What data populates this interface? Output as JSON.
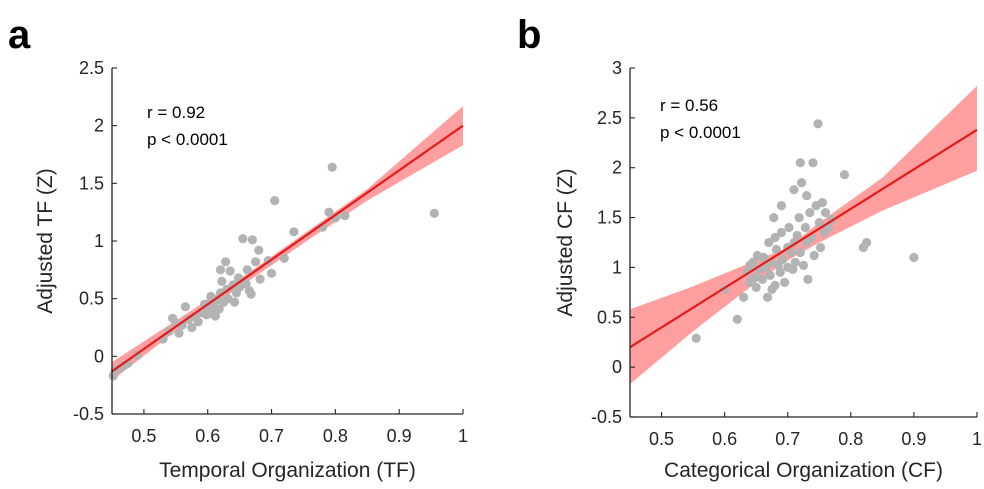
{
  "chart_data": [
    {
      "type": "scatter",
      "panel_label": "a",
      "xlabel": "Temporal Organization (TF)",
      "ylabel": "Adjusted TF (Z)",
      "xlim": [
        0.45,
        1
      ],
      "ylim": [
        -0.5,
        2.5
      ],
      "x_ticks": [
        0.5,
        0.6,
        0.7,
        0.8,
        0.9,
        1
      ],
      "x_tick_labels": [
        "0.5",
        "0.6",
        "0.7",
        "0.8",
        "0.9",
        "1"
      ],
      "y_ticks": [
        -0.5,
        0,
        0.5,
        1,
        1.5,
        2,
        2.5
      ],
      "y_tick_labels": [
        "-0.5",
        "0",
        "0.5",
        "1",
        "1.5",
        "2",
        "2.5"
      ],
      "grid": false,
      "annotations": [
        "r = 0.92",
        "p < 0.0001"
      ],
      "fit_line": {
        "x": [
          0.45,
          1.0
        ],
        "y": [
          -0.13,
          2.0
        ]
      },
      "ci_band": {
        "x": [
          0.45,
          0.55,
          0.65,
          0.75,
          0.85,
          1.0
        ],
        "lower": [
          -0.21,
          0.22,
          0.6,
          0.98,
          1.35,
          1.83
        ],
        "upper": [
          -0.05,
          0.31,
          0.67,
          1.06,
          1.45,
          2.17
        ]
      },
      "points": [
        [
          0.452,
          -0.17
        ],
        [
          0.455,
          -0.12
        ],
        [
          0.462,
          -0.1
        ],
        [
          0.468,
          -0.08
        ],
        [
          0.475,
          -0.06
        ],
        [
          0.49,
          0.01
        ],
        [
          0.53,
          0.15
        ],
        [
          0.54,
          0.22
        ],
        [
          0.545,
          0.33
        ],
        [
          0.55,
          0.29
        ],
        [
          0.555,
          0.2
        ],
        [
          0.56,
          0.27
        ],
        [
          0.565,
          0.43
        ],
        [
          0.57,
          0.32
        ],
        [
          0.575,
          0.25
        ],
        [
          0.58,
          0.34
        ],
        [
          0.585,
          0.3
        ],
        [
          0.59,
          0.38
        ],
        [
          0.595,
          0.45
        ],
        [
          0.598,
          0.36
        ],
        [
          0.6,
          0.4
        ],
        [
          0.602,
          0.46
        ],
        [
          0.605,
          0.52
        ],
        [
          0.608,
          0.37
        ],
        [
          0.61,
          0.43
        ],
        [
          0.612,
          0.35
        ],
        [
          0.615,
          0.49
        ],
        [
          0.618,
          0.41
        ],
        [
          0.62,
          0.55
        ],
        [
          0.62,
          0.75
        ],
        [
          0.622,
          0.65
        ],
        [
          0.625,
          0.47
        ],
        [
          0.628,
          0.82
        ],
        [
          0.63,
          0.58
        ],
        [
          0.632,
          0.5
        ],
        [
          0.635,
          0.74
        ],
        [
          0.64,
          0.62
        ],
        [
          0.642,
          0.47
        ],
        [
          0.645,
          0.55
        ],
        [
          0.648,
          0.68
        ],
        [
          0.65,
          0.6
        ],
        [
          0.655,
          1.02
        ],
        [
          0.66,
          0.63
        ],
        [
          0.662,
          0.75
        ],
        [
          0.665,
          0.57
        ],
        [
          0.668,
          0.54
        ],
        [
          0.67,
          1.01
        ],
        [
          0.675,
          0.82
        ],
        [
          0.68,
          0.92
        ],
        [
          0.682,
          0.67
        ],
        [
          0.695,
          0.83
        ],
        [
          0.7,
          0.72
        ],
        [
          0.705,
          1.35
        ],
        [
          0.72,
          0.85
        ],
        [
          0.735,
          1.08
        ],
        [
          0.78,
          1.12
        ],
        [
          0.79,
          1.25
        ],
        [
          0.795,
          1.64
        ],
        [
          0.8,
          1.2
        ],
        [
          0.815,
          1.22
        ],
        [
          0.955,
          1.24
        ]
      ]
    },
    {
      "type": "scatter",
      "panel_label": "b",
      "xlabel": "Categorical Organization (CF)",
      "ylabel": "Adjusted CF (Z)",
      "xlim": [
        0.45,
        1
      ],
      "ylim": [
        -0.5,
        3
      ],
      "x_ticks": [
        0.5,
        0.6,
        0.7,
        0.8,
        0.9,
        1
      ],
      "x_tick_labels": [
        "0.5",
        "0.6",
        "0.7",
        "0.8",
        "0.9",
        "1"
      ],
      "y_ticks": [
        -0.5,
        0,
        0.5,
        1,
        1.5,
        2,
        2.5,
        3
      ],
      "y_tick_labels": [
        "-0.5",
        "0",
        "0.5",
        "1",
        "1.5",
        "2",
        "2.5",
        "3"
      ],
      "grid": false,
      "annotations": [
        "r = 0.56",
        "p < 0.0001"
      ],
      "fit_line": {
        "x": [
          0.45,
          1.0
        ],
        "y": [
          0.2,
          2.38
        ]
      },
      "ci_band": {
        "x": [
          0.45,
          0.55,
          0.65,
          0.7,
          0.75,
          0.85,
          1.0
        ],
        "lower": [
          -0.17,
          0.36,
          0.85,
          1.07,
          1.25,
          1.57,
          1.97
        ],
        "upper": [
          0.58,
          0.81,
          1.07,
          1.2,
          1.45,
          1.9,
          2.82
        ]
      },
      "points": [
        [
          0.555,
          0.29
        ],
        [
          0.6,
          0.78
        ],
        [
          0.62,
          0.48
        ],
        [
          0.63,
          0.7
        ],
        [
          0.635,
          0.95
        ],
        [
          0.64,
          1.02
        ],
        [
          0.64,
          0.85
        ],
        [
          0.645,
          1.05
        ],
        [
          0.648,
          0.9
        ],
        [
          0.65,
          0.8
        ],
        [
          0.652,
          1.12
        ],
        [
          0.655,
          0.98
        ],
        [
          0.66,
          0.88
        ],
        [
          0.662,
          1.1
        ],
        [
          0.665,
          1.0
        ],
        [
          0.668,
          0.7
        ],
        [
          0.67,
          1.25
        ],
        [
          0.672,
          0.92
        ],
        [
          0.675,
          0.78
        ],
        [
          0.675,
          1.05
        ],
        [
          0.678,
          1.5
        ],
        [
          0.68,
          1.3
        ],
        [
          0.68,
          0.82
        ],
        [
          0.682,
          1.18
        ],
        [
          0.685,
          1.02
        ],
        [
          0.688,
          0.95
        ],
        [
          0.69,
          1.35
        ],
        [
          0.69,
          1.62
        ],
        [
          0.692,
          1.08
        ],
        [
          0.695,
          0.85
        ],
        [
          0.7,
          1.2
        ],
        [
          0.7,
          1.0
        ],
        [
          0.702,
          1.4
        ],
        [
          0.705,
          1.15
        ],
        [
          0.708,
          0.98
        ],
        [
          0.71,
          1.78
        ],
        [
          0.71,
          1.25
        ],
        [
          0.712,
          1.05
        ],
        [
          0.715,
          1.32
        ],
        [
          0.718,
          1.5
        ],
        [
          0.72,
          2.05
        ],
        [
          0.72,
          1.15
        ],
        [
          0.722,
          1.85
        ],
        [
          0.725,
          1.02
        ],
        [
          0.728,
          1.4
        ],
        [
          0.73,
          1.72
        ],
        [
          0.73,
          1.25
        ],
        [
          0.732,
          0.88
        ],
        [
          0.735,
          1.55
        ],
        [
          0.738,
          1.3
        ],
        [
          0.74,
          2.05
        ],
        [
          0.742,
          1.12
        ],
        [
          0.745,
          1.62
        ],
        [
          0.748,
          2.44
        ],
        [
          0.75,
          1.45
        ],
        [
          0.752,
          1.2
        ],
        [
          0.755,
          1.65
        ],
        [
          0.758,
          1.35
        ],
        [
          0.76,
          1.55
        ],
        [
          0.765,
          1.4
        ],
        [
          0.77,
          1.48
        ],
        [
          0.79,
          1.93
        ],
        [
          0.82,
          1.2
        ],
        [
          0.825,
          1.25
        ],
        [
          0.9,
          1.1
        ]
      ]
    }
  ]
}
